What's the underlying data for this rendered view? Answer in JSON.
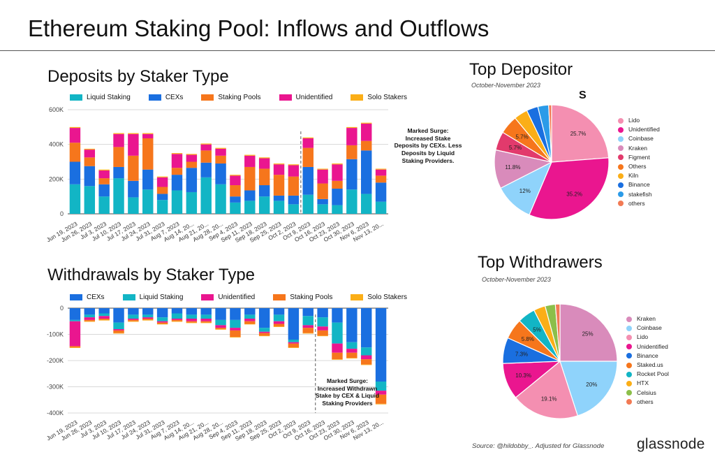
{
  "title": "Ethereum Staking Pool: Inflows and Outflows",
  "footer": {
    "source": "Source: @hildobby_. Adjusted for Glassnode",
    "logo": "glassnode"
  },
  "chart_data": [
    {
      "id": "deposits",
      "type": "bar",
      "stacked": true,
      "title": "Deposits by Staker Type",
      "ylim": [
        0,
        600000
      ],
      "yticks": [
        0,
        200000,
        400000,
        600000
      ],
      "ytick_labels": [
        "0",
        "200K",
        "400K",
        "600K"
      ],
      "x_tick_labels": [
        "Jun 19, 2023",
        "Jun 26, 2023",
        "Jul 3, 2023",
        "Jul 10, 2023",
        "Jul 17, 2023",
        "Jul 24, 2023",
        "Jul 31, 2023",
        "Aug 7, 2023",
        "Aug 14, 20...",
        "Aug 21, 20...",
        "Aug 28, 20...",
        "Sep 4, 2023",
        "Sep 11, 2023",
        "Sep 18, 2023",
        "Sep 25, 2023",
        "Oct 2, 2023",
        "Oct 9, 2023",
        "Oct 16, 2023",
        "Oct 23, 2023",
        "Oct 30, 2023",
        "Nov 6, 2023",
        "Nov 13, 20..."
      ],
      "series": [
        {
          "name": "Liquid Staking",
          "color": "#12b5c5",
          "values": [
            170000,
            160000,
            100000,
            205000,
            95000,
            140000,
            80000,
            135000,
            125000,
            210000,
            170000,
            65000,
            75000,
            100000,
            75000,
            55000,
            110000,
            55000,
            50000,
            140000,
            115000,
            70000
          ]
        },
        {
          "name": "CEXs",
          "color": "#1a6fe0",
          "values": [
            130000,
            115000,
            70000,
            65000,
            95000,
            115000,
            35000,
            90000,
            140000,
            85000,
            120000,
            35000,
            60000,
            65000,
            30000,
            50000,
            160000,
            30000,
            95000,
            175000,
            250000,
            110000
          ]
        },
        {
          "name": "Staking Pools",
          "color": "#f6761c",
          "values": [
            110000,
            50000,
            35000,
            115000,
            145000,
            180000,
            40000,
            40000,
            35000,
            70000,
            45000,
            65000,
            135000,
            95000,
            120000,
            110000,
            110000,
            90000,
            45000,
            80000,
            55000,
            40000
          ]
        },
        {
          "name": "Unidentified",
          "color": "#ea168f",
          "values": [
            85000,
            45000,
            45000,
            75000,
            125000,
            25000,
            55000,
            80000,
            40000,
            35000,
            40000,
            55000,
            65000,
            60000,
            60000,
            65000,
            55000,
            80000,
            95000,
            100000,
            100000,
            35000
          ]
        },
        {
          "name": "Solo Stakers",
          "color": "#fbae17",
          "values": [
            5000,
            5000,
            5000,
            5000,
            5000,
            5000,
            5000,
            5000,
            5000,
            5000,
            5000,
            5000,
            5000,
            5000,
            5000,
            5000,
            5000,
            5000,
            5000,
            5000,
            5000,
            5000
          ]
        }
      ],
      "annotation": {
        "text": "Marked Surge: Increased Stake Deposits by CEXs. Less Deposits by Liquid Staking Providers.",
        "lines": [
          "Marked Surge:",
          "Increased Stake",
          "Deposits by CEXs. Less",
          "Deposits by Liquid",
          "Staking Providers."
        ],
        "after_index": 15
      }
    },
    {
      "id": "withdrawals",
      "type": "bar",
      "stacked": true,
      "title": "Withdrawals by Staker Type",
      "ylim": [
        -400000,
        0
      ],
      "yticks": [
        0,
        -100000,
        -200000,
        -300000,
        -400000
      ],
      "ytick_labels": [
        "0",
        "-100K",
        "-200K",
        "-300K",
        "-400K"
      ],
      "x_tick_labels": [
        "Jun 19, 2023",
        "Jun 26, 2023",
        "Jul 3, 2023",
        "Jul 10, 2023",
        "Jul 17, 2023",
        "Jul 24, 2023",
        "Jul 31, 2023",
        "Aug 7, 2023",
        "Aug 14, 20...",
        "Aug 21, 20...",
        "Aug 28, 20...",
        "Sep 4, 2023",
        "Sep 11, 2023",
        "Sep 18, 2023",
        "Sep 25, 2023",
        "Oct 2, 2023",
        "Oct 9, 2023",
        "Oct 16, 2023",
        "Oct 23, 2023",
        "Oct 30, 2023",
        "Nov 6, 2023",
        "Nov 13, 20..."
      ],
      "series": [
        {
          "name": "CEXs",
          "color": "#1a6fe0",
          "values": [
            -45000,
            -25000,
            -20000,
            -55000,
            -25000,
            -25000,
            -35000,
            -20000,
            -25000,
            -25000,
            -45000,
            -45000,
            -25000,
            -75000,
            -25000,
            -120000,
            -30000,
            -35000,
            -55000,
            -130000,
            -150000,
            -280000
          ]
        },
        {
          "name": "Liquid Staking",
          "color": "#12b5c5",
          "values": [
            -5000,
            -10000,
            -10000,
            -25000,
            -15000,
            -10000,
            -15000,
            -20000,
            -15000,
            -15000,
            -20000,
            -30000,
            -15000,
            -15000,
            -25000,
            -10000,
            -35000,
            -35000,
            -80000,
            -25000,
            -30000,
            -35000
          ]
        },
        {
          "name": "Unidentified",
          "color": "#ea168f",
          "values": [
            -95000,
            -10000,
            -10000,
            -5000,
            -5000,
            -5000,
            -5000,
            -5000,
            -10000,
            -10000,
            -10000,
            -10000,
            -10000,
            -5000,
            -10000,
            -5000,
            -10000,
            -15000,
            -35000,
            -15000,
            -15000,
            -15000
          ]
        },
        {
          "name": "Staking Pools",
          "color": "#f6761c",
          "values": [
            -5000,
            -5000,
            -5000,
            -10000,
            -5000,
            -5000,
            -5000,
            -5000,
            -5000,
            -5000,
            -5000,
            -25000,
            -10000,
            -10000,
            -10000,
            -15000,
            -20000,
            -20000,
            -25000,
            -20000,
            -20000,
            -35000
          ]
        },
        {
          "name": "Solo Stakers",
          "color": "#fbae17",
          "values": [
            -2000,
            -2000,
            -2000,
            -2000,
            -2000,
            -2000,
            -2000,
            -2000,
            -2000,
            -2000,
            -2000,
            -2000,
            -2000,
            -2000,
            -2000,
            -2000,
            -2000,
            -2000,
            -2000,
            -2000,
            -2000,
            -2000
          ]
        }
      ],
      "annotation": {
        "text": "Marked Surge: Increased Withdrawn Stake by CEX & Liquid Staking Providers",
        "lines": [
          "Marked Surge:",
          "Increased Withdrawn",
          "Stake by CEX & Liquid",
          "Staking Providers"
        ],
        "after_index": 16
      }
    },
    {
      "id": "top-depositor",
      "type": "pie",
      "title": "Top Depositor",
      "subtitle": "October-November 2023",
      "label": "S",
      "slices": [
        {
          "name": "Lido",
          "color": "#f48fb1",
          "value": 25.7,
          "label": "25.7%"
        },
        {
          "name": "Unidentified",
          "color": "#ea168f",
          "value": 35.2,
          "label": "35.2%"
        },
        {
          "name": "Coinbase",
          "color": "#8fd3fb",
          "value": 12,
          "label": "12%"
        },
        {
          "name": "Kraken",
          "color": "#d98bbb",
          "value": 11.8,
          "label": "11.8%"
        },
        {
          "name": "Figment",
          "color": "#e23a6c",
          "value": 5.7,
          "label": "5.7%"
        },
        {
          "name": "Others",
          "color": "#f6761c",
          "value": 5.7,
          "label": "5.7%"
        },
        {
          "name": "Kiln",
          "color": "#fbae17",
          "value": 4.2,
          "label": ""
        },
        {
          "name": "Binance",
          "color": "#1a6fe0",
          "value": 3.5,
          "label": ""
        },
        {
          "name": "stakefish",
          "color": "#2b9be8",
          "value": 3.3,
          "label": ""
        },
        {
          "name": "others",
          "color": "#f27a54",
          "value": 0.9,
          "label": ""
        }
      ]
    },
    {
      "id": "top-withdrawers",
      "type": "pie",
      "title": "Top Withdrawers",
      "subtitle": "October-November 2023",
      "slices": [
        {
          "name": "Kraken",
          "color": "#d98bbb",
          "value": 25,
          "label": "25%"
        },
        {
          "name": "Coinbase",
          "color": "#8fd3fb",
          "value": 20,
          "label": "20%"
        },
        {
          "name": "Lido",
          "color": "#f48fb1",
          "value": 19.1,
          "label": "19.1%"
        },
        {
          "name": "Unidentified",
          "color": "#ea168f",
          "value": 10.3,
          "label": "10.3%"
        },
        {
          "name": "Binance",
          "color": "#1a6fe0",
          "value": 7.3,
          "label": "7.3%"
        },
        {
          "name": "Staked.us",
          "color": "#f6761c",
          "value": 5.8,
          "label": "5.8%"
        },
        {
          "name": "Rocket Pool",
          "color": "#12b5c5",
          "value": 5,
          "label": "5%"
        },
        {
          "name": "HTX",
          "color": "#fbae17",
          "value": 3.3,
          "label": ""
        },
        {
          "name": "Celsius",
          "color": "#8cbf4a",
          "value": 2.9,
          "label": ""
        },
        {
          "name": "others",
          "color": "#f27a54",
          "value": 1.3,
          "label": ""
        }
      ]
    }
  ]
}
